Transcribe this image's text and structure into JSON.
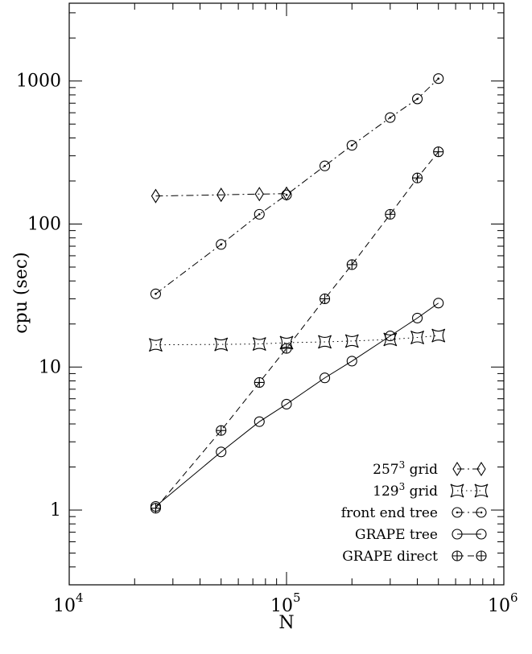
{
  "chart_data": {
    "type": "line",
    "xlabel": "N",
    "ylabel": "cpu (sec)",
    "xscale": "log",
    "yscale": "log",
    "xlim": [
      10000,
      1000000
    ],
    "ylim": [
      0.3,
      3500
    ],
    "x_ticks": [
      {
        "value": 10000,
        "base": "10",
        "exp": "4"
      },
      {
        "value": 100000,
        "base": "10",
        "exp": "5"
      },
      {
        "value": 1000000,
        "base": "10",
        "exp": "6"
      }
    ],
    "y_ticks": [
      {
        "value": 1,
        "label": "1"
      },
      {
        "value": 10,
        "label": "10"
      },
      {
        "value": 100,
        "label": "100"
      },
      {
        "value": 1000,
        "label": "1000"
      }
    ],
    "grid": false,
    "legend_position": "bottom-right",
    "series": [
      {
        "name": "257",
        "name_sup": "3",
        "name_suffix": " grid",
        "marker": "diamond",
        "line": "dotdash",
        "x": [
          25000,
          50000,
          75000,
          100000
        ],
        "y": [
          157,
          160,
          162,
          163
        ]
      },
      {
        "name": "129",
        "name_sup": "3",
        "name_suffix": " grid",
        "marker": "square",
        "line": "dotted",
        "x": [
          25000,
          50000,
          75000,
          100000,
          150000,
          200000,
          300000,
          400000,
          500000
        ],
        "y": [
          14.3,
          14.4,
          14.5,
          14.8,
          15.0,
          15.2,
          15.6,
          16.1,
          16.6
        ]
      },
      {
        "name": "front end tree",
        "marker": "circle-dot",
        "line": "dotdash",
        "x": [
          25000,
          50000,
          75000,
          100000,
          150000,
          200000,
          300000,
          400000,
          500000
        ],
        "y": [
          32.5,
          72,
          117,
          160,
          255,
          355,
          555,
          750,
          1040
        ]
      },
      {
        "name": "GRAPE tree",
        "marker": "circle",
        "line": "solid",
        "x": [
          25000,
          50000,
          75000,
          100000,
          150000,
          200000,
          300000,
          400000,
          500000
        ],
        "y": [
          1.06,
          2.55,
          4.15,
          5.5,
          8.4,
          11.0,
          16.5,
          22,
          28
        ]
      },
      {
        "name": "GRAPE direct",
        "marker": "circle-plus",
        "line": "dashed",
        "x": [
          25000,
          50000,
          75000,
          100000,
          150000,
          200000,
          300000,
          400000,
          500000
        ],
        "y": [
          1.03,
          3.6,
          7.8,
          13.5,
          30,
          52,
          117,
          210,
          320
        ]
      }
    ]
  }
}
